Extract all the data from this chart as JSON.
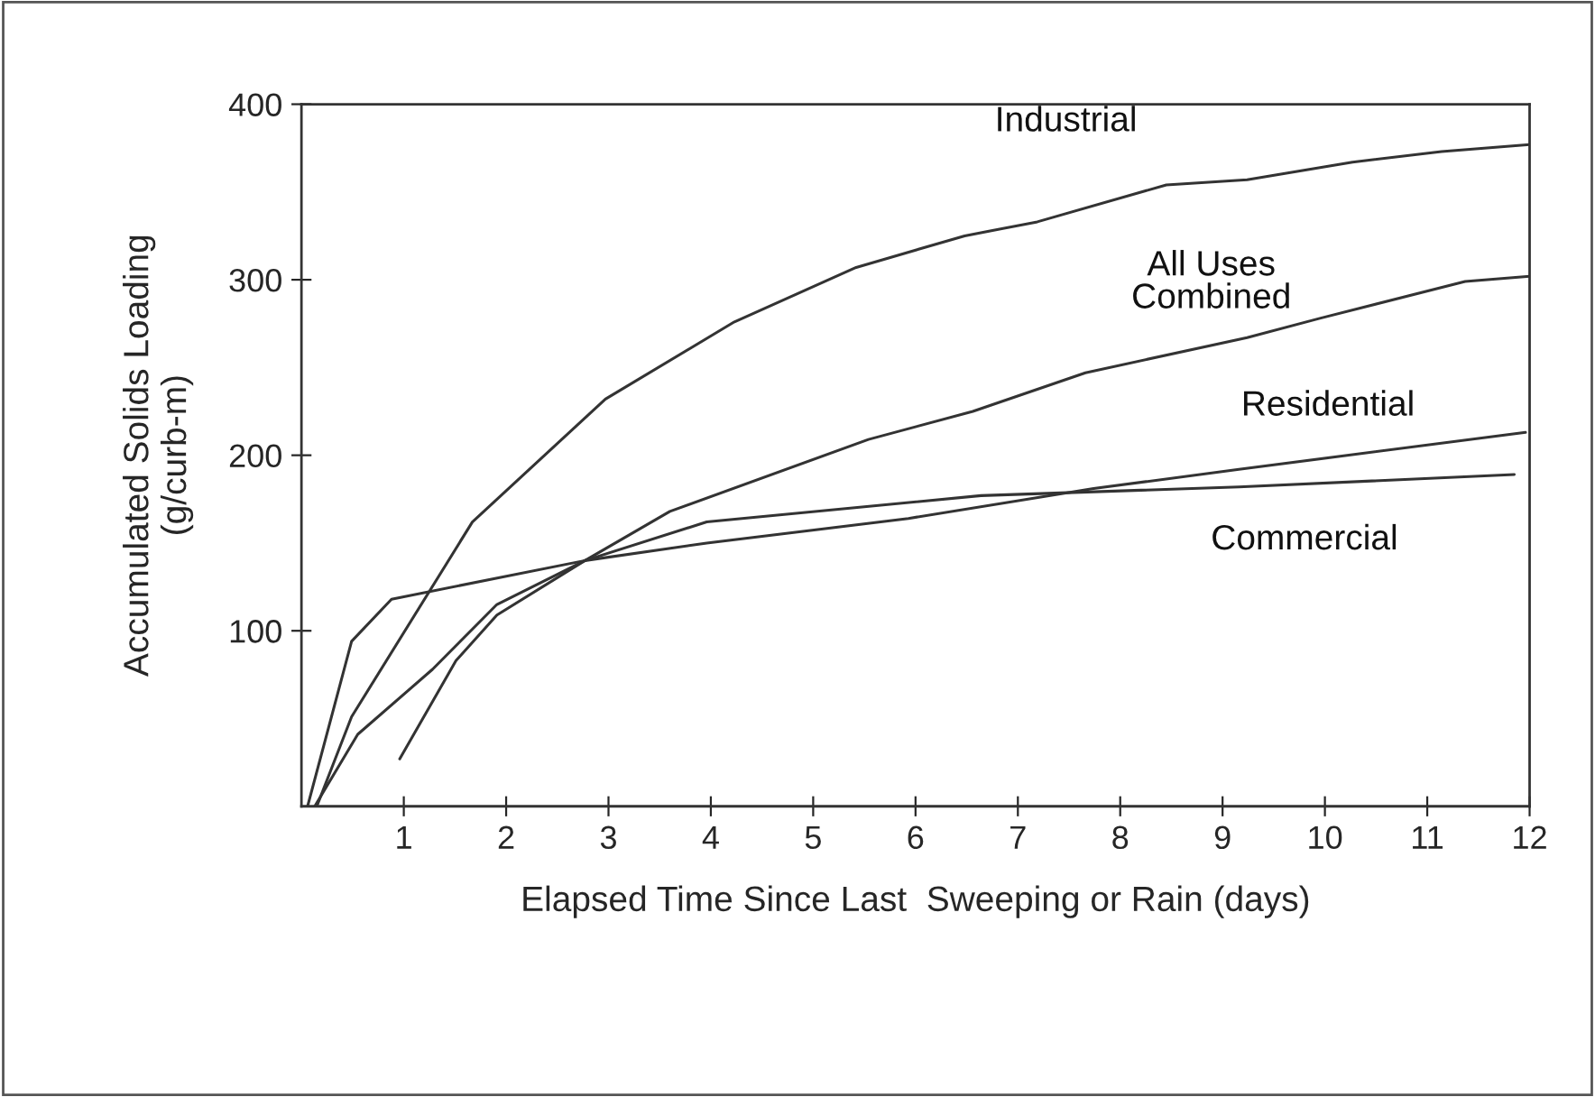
{
  "chart_data": {
    "type": "line",
    "xlabel": "Elapsed Time Since Last  Sweeping or Rain (days)",
    "ylabel": "Accumulated Solids Loading\n(g/curb-m)",
    "xlim": [
      0,
      12
    ],
    "ylim": [
      0,
      400
    ],
    "xticks": [
      1,
      2,
      3,
      4,
      5,
      6,
      7,
      8,
      9,
      10,
      11,
      12
    ],
    "yticks": [
      100,
      200,
      300,
      400
    ],
    "grid": false,
    "legend": false,
    "marker": "none",
    "line_style": "solid",
    "series": [
      {
        "name": "Industrial",
        "color": "#333333",
        "x": [
          0.15,
          0.49,
          1.67,
          2.97,
          4.23,
          5.42,
          6.48,
          7.19,
          8.45,
          9.24,
          10.27,
          11.14,
          12
        ],
        "values": [
          0,
          51,
          162,
          232,
          276,
          307,
          325,
          333,
          354,
          357,
          367,
          373,
          377
        ]
      },
      {
        "name": "All Uses\nCombined",
        "color": "#333333",
        "x": [
          0.96,
          1.51,
          1.91,
          2.77,
          3.6,
          5.54,
          6.56,
          7.66,
          9.24,
          9.95,
          11.37,
          12
        ],
        "values": [
          27,
          83,
          109,
          140,
          168,
          209,
          225,
          247,
          267,
          278,
          299,
          302
        ]
      },
      {
        "name": "Residential",
        "color": "#333333",
        "x": [
          0.13,
          0.55,
          1.28,
          1.91,
          2.77,
          3.96,
          5.93,
          7.74,
          9.16,
          11.96
        ],
        "values": [
          0,
          41,
          78,
          115,
          140,
          150,
          164,
          181,
          192,
          213
        ]
      },
      {
        "name": "Commercial",
        "color": "#333333",
        "x": [
          0.06,
          0.49,
          0.88,
          2.77,
          3.96,
          6.64,
          9.16,
          11.85
        ],
        "values": [
          0,
          94,
          118,
          140,
          162,
          177,
          182,
          189
        ]
      }
    ]
  }
}
